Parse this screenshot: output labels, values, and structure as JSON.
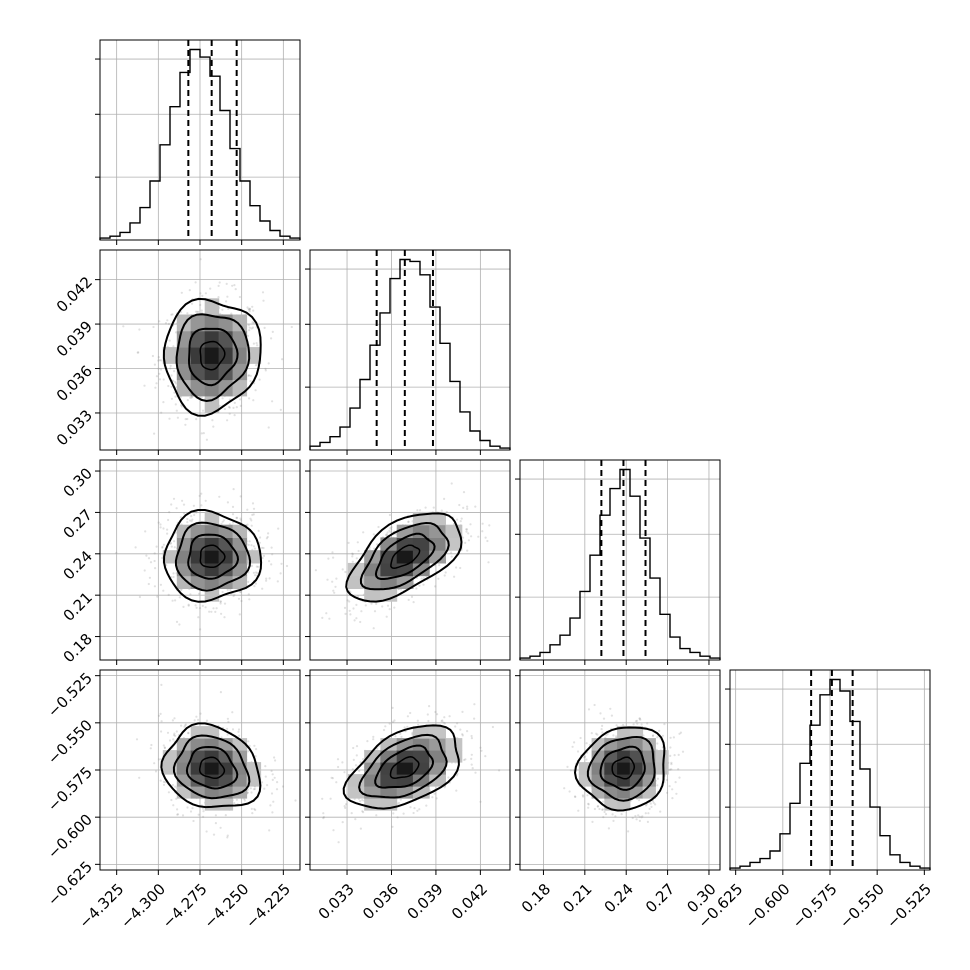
{
  "chart_data": {
    "type": "corner",
    "grid": true,
    "parameters": [
      {
        "range": [
          -4.335,
          -4.215
        ],
        "median": -4.268,
        "q16": -4.282,
        "q84": -4.253,
        "sigma": 0.0145,
        "ticks": [
          -4.325,
          -4.3,
          -4.275,
          -4.25,
          -4.225
        ],
        "tick_labels": [
          "−4.325",
          "−4.300",
          "−4.275",
          "−4.250",
          "−4.225"
        ]
      },
      {
        "range": [
          0.0305,
          0.044
        ],
        "median": 0.0369,
        "q16": 0.035,
        "q84": 0.0388,
        "sigma": 0.0019,
        "ticks": [
          0.033,
          0.036,
          0.039,
          0.042
        ],
        "tick_labels": [
          "0.033",
          "0.036",
          "0.039",
          "0.042"
        ]
      },
      {
        "range": [
          0.163,
          0.308
        ],
        "median": 0.238,
        "q16": 0.222,
        "q84": 0.254,
        "sigma": 0.016,
        "ticks": [
          0.18,
          0.21,
          0.24,
          0.27,
          0.3
        ],
        "tick_labels": [
          "0.18",
          "0.21",
          "0.24",
          "0.27",
          "0.30"
        ]
      },
      {
        "range": [
          -0.628,
          -0.522
        ],
        "median": -0.574,
        "q16": -0.585,
        "q84": -0.563,
        "sigma": 0.011,
        "ticks": [
          -0.625,
          -0.6,
          -0.575,
          -0.55,
          -0.525
        ],
        "tick_labels": [
          "−0.625",
          "−0.600",
          "−0.575",
          "−0.550",
          "−0.525"
        ]
      }
    ],
    "hist_counts": [
      [
        0.01,
        0.02,
        0.04,
        0.09,
        0.17,
        0.31,
        0.5,
        0.7,
        0.88,
        1.0,
        0.96,
        0.86,
        0.68,
        0.48,
        0.31,
        0.18,
        0.1,
        0.05,
        0.02,
        0.01
      ],
      [
        0.02,
        0.04,
        0.07,
        0.12,
        0.22,
        0.37,
        0.55,
        0.72,
        0.9,
        1.0,
        0.99,
        0.92,
        0.75,
        0.56,
        0.36,
        0.2,
        0.1,
        0.05,
        0.02,
        0.01
      ],
      [
        0.01,
        0.02,
        0.04,
        0.08,
        0.13,
        0.22,
        0.36,
        0.55,
        0.76,
        0.9,
        1.0,
        0.86,
        0.64,
        0.43,
        0.24,
        0.12,
        0.06,
        0.04,
        0.02,
        0.01
      ],
      [
        0.01,
        0.02,
        0.04,
        0.06,
        0.1,
        0.19,
        0.35,
        0.56,
        0.76,
        0.92,
        1.0,
        0.94,
        0.78,
        0.53,
        0.33,
        0.18,
        0.08,
        0.04,
        0.02,
        0.01
      ]
    ],
    "correlations": {
      "1-0": 0.05,
      "2-0": 0.0,
      "2-1": 0.55,
      "3-0": -0.15,
      "3-1": 0.45,
      "3-2": 0.1
    },
    "contour_levels_sigma": [
      0.5,
      1.0,
      1.5,
      2.0
    ]
  }
}
